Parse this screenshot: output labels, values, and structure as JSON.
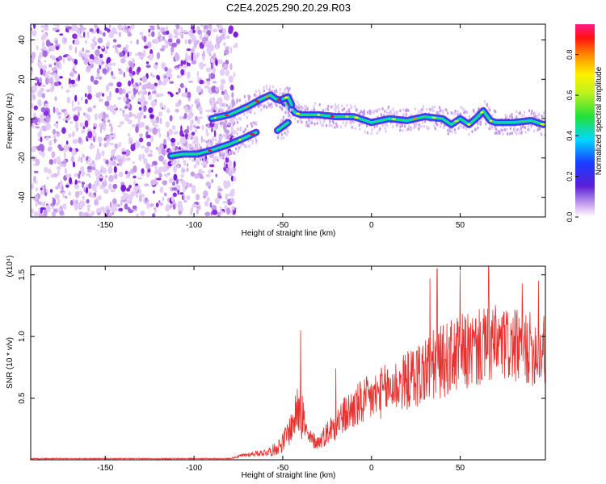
{
  "figure_title": "C2E4.2025.290.20.29.R03",
  "colors": {
    "snr_line": "#e8302e",
    "noise_scatter": "#8b2be2",
    "axis": "#000000"
  },
  "chart_data": [
    {
      "type": "heatmap",
      "title": "C2E4.2025.290.20.29.R03",
      "xlabel": "Height of straight line (km)",
      "ylabel": "Frequency (Hz)",
      "xlim": [
        -192,
        98
      ],
      "ylim": [
        -50,
        48
      ],
      "xticks": [
        -150,
        -100,
        -50,
        0,
        50
      ],
      "xtick_labels": [
        "-150",
        "-100",
        "-50",
        "0",
        "50"
      ],
      "yticks": [
        -40,
        -20,
        0,
        20,
        40
      ],
      "ytick_labels": [
        "-40",
        "-20",
        "0",
        "20",
        "40"
      ],
      "colorbar": {
        "label": "Normalized spectral amplitude",
        "range": [
          0,
          0.95
        ],
        "ticks": [
          0.0,
          0.2,
          0.4,
          0.6,
          0.8
        ],
        "tick_labels": [
          "0.0",
          "0.2",
          "0.4",
          "0.6",
          "0.8"
        ]
      },
      "noise_region_x": [
        -192,
        -77
      ],
      "signal_traces": [
        {
          "name": "main_band",
          "points": [
            [
              -90,
              0
            ],
            [
              -80,
              2
            ],
            [
              -70,
              6
            ],
            [
              -62,
              10
            ],
            [
              -57,
              12
            ],
            [
              -54,
              10
            ],
            [
              -50,
              9
            ],
            [
              -46,
              6
            ],
            [
              -43,
              3
            ],
            [
              -40,
              2
            ],
            [
              -30,
              2
            ],
            [
              -20,
              1
            ],
            [
              -10,
              1
            ],
            [
              0,
              -2
            ],
            [
              10,
              0
            ],
            [
              20,
              -1
            ],
            [
              30,
              1
            ],
            [
              40,
              0
            ],
            [
              45,
              -3
            ],
            [
              50,
              0
            ],
            [
              55,
              -3
            ],
            [
              60,
              1
            ],
            [
              63,
              4
            ],
            [
              67,
              -1
            ],
            [
              70,
              -2
            ],
            [
              80,
              -2
            ],
            [
              90,
              -1
            ],
            [
              97,
              -3
            ]
          ]
        },
        {
          "name": "upper_branch",
          "points": [
            [
              -50,
              10
            ],
            [
              -47,
              11
            ],
            [
              -45,
              7
            ]
          ]
        },
        {
          "name": "mid_branch",
          "points": [
            [
              -53,
              -6
            ],
            [
              -50,
              -4
            ],
            [
              -47,
              -2
            ]
          ]
        },
        {
          "name": "lower_branch",
          "points": [
            [
              -113,
              -19
            ],
            [
              -106,
              -18
            ],
            [
              -98,
              -18
            ],
            [
              -90,
              -16
            ],
            [
              -80,
              -13
            ],
            [
              -72,
              -10
            ],
            [
              -65,
              -7
            ]
          ]
        }
      ]
    },
    {
      "type": "line",
      "xlabel": "Height of straight line (km)",
      "ylabel": "SNR (10 * v/v)",
      "y_multiplier": "(x10⁴)",
      "xlim": [
        -192,
        98
      ],
      "ylim": [
        0,
        1.57
      ],
      "xticks": [
        -150,
        -100,
        -50,
        0,
        50
      ],
      "xtick_labels": [
        "-150",
        "-100",
        "-50",
        "0",
        "50"
      ],
      "yticks": [
        0.5,
        1.0,
        1.5
      ],
      "ytick_labels": [
        "0.5",
        "1.0",
        "1.5"
      ],
      "series": [
        {
          "name": "SNR",
          "envelope_x": [
            -192,
            -80,
            -74,
            -66,
            -60,
            -55,
            -50,
            -47,
            -44,
            -42,
            -40,
            -38,
            -36,
            -30,
            -25,
            -20,
            -15,
            -10,
            -5,
            0,
            10,
            20,
            30,
            40,
            50,
            60,
            70,
            80,
            90,
            98
          ],
          "envelope_mean": [
            0.01,
            0.01,
            0.03,
            0.05,
            0.06,
            0.08,
            0.14,
            0.22,
            0.3,
            0.4,
            0.55,
            0.3,
            0.18,
            0.14,
            0.22,
            0.3,
            0.36,
            0.42,
            0.46,
            0.5,
            0.58,
            0.64,
            0.72,
            0.8,
            0.86,
            0.9,
            0.94,
            0.92,
            0.9,
            0.88
          ],
          "envelope_amplitude": [
            0.004,
            0.004,
            0.015,
            0.02,
            0.03,
            0.05,
            0.08,
            0.12,
            0.14,
            0.18,
            0.4,
            0.16,
            0.08,
            0.06,
            0.1,
            0.14,
            0.16,
            0.18,
            0.2,
            0.2,
            0.22,
            0.24,
            0.3,
            0.3,
            0.32,
            0.32,
            0.32,
            0.3,
            0.3,
            0.3
          ],
          "peaks": [
            [
              -40,
              1.05
            ],
            [
              -20,
              0.74
            ],
            [
              33,
              1.47
            ],
            [
              37,
              1.55
            ],
            [
              50,
              1.53
            ],
            [
              66,
              1.57
            ],
            [
              85,
              1.43
            ],
            [
              94,
              1.45
            ],
            [
              97,
              1.1
            ]
          ]
        }
      ]
    }
  ]
}
